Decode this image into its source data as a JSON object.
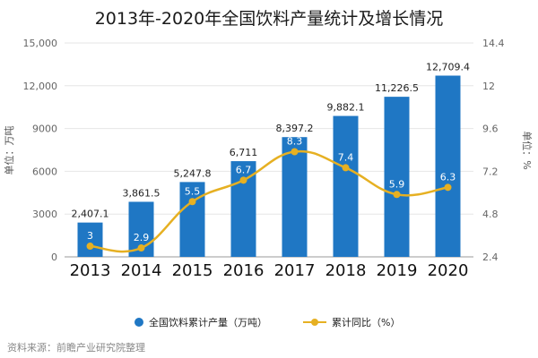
{
  "chart_data": {
    "type": "bar",
    "title": "2013年-2020年全国饮料产量统计及增长情况",
    "categories": [
      "2013",
      "2014",
      "2015",
      "2016",
      "2017",
      "2018",
      "2019",
      "2020"
    ],
    "series": [
      {
        "name": "全国饮料累计产量（万吨）",
        "type": "bar",
        "axis": "left",
        "values": [
          2407.1,
          3861.5,
          5247.8,
          6711,
          8397.2,
          9882.1,
          11226.5,
          12709.4
        ],
        "labels": [
          "2,407.1",
          "3,861.5",
          "5,247.8",
          "6,711",
          "8,397.2",
          "9,882.1",
          "11,226.5",
          "12,709.4"
        ],
        "color": "#1f77c4"
      },
      {
        "name": "累计同比（%）",
        "type": "line",
        "axis": "right",
        "values": [
          3,
          2.9,
          5.5,
          6.7,
          8.3,
          7.4,
          5.9,
          6.3
        ],
        "labels": [
          "3",
          "2.9",
          "5.5",
          "6.7",
          "8.3",
          "7.4",
          "5.9",
          "6.3"
        ],
        "color": "#e6b022"
      }
    ],
    "y_left": {
      "label": "单位：万吨",
      "range": [
        0,
        15000
      ],
      "ticks": [
        0,
        3000,
        6000,
        9000,
        12000,
        15000
      ],
      "tick_labels": [
        "0",
        "3000",
        "6000",
        "9000",
        "12,000",
        "15,000"
      ]
    },
    "y_right": {
      "label": "单位：%",
      "range": [
        2.4,
        14.4
      ],
      "ticks": [
        2.4,
        4.8,
        7.2,
        9.6,
        12,
        14.4
      ],
      "tick_labels": [
        "2.4",
        "4.8",
        "7.2",
        "9.6",
        "12",
        "14.4"
      ]
    },
    "grid": true,
    "legend_position": "bottom"
  },
  "source": "资料来源：前瞻产业研究院整理"
}
